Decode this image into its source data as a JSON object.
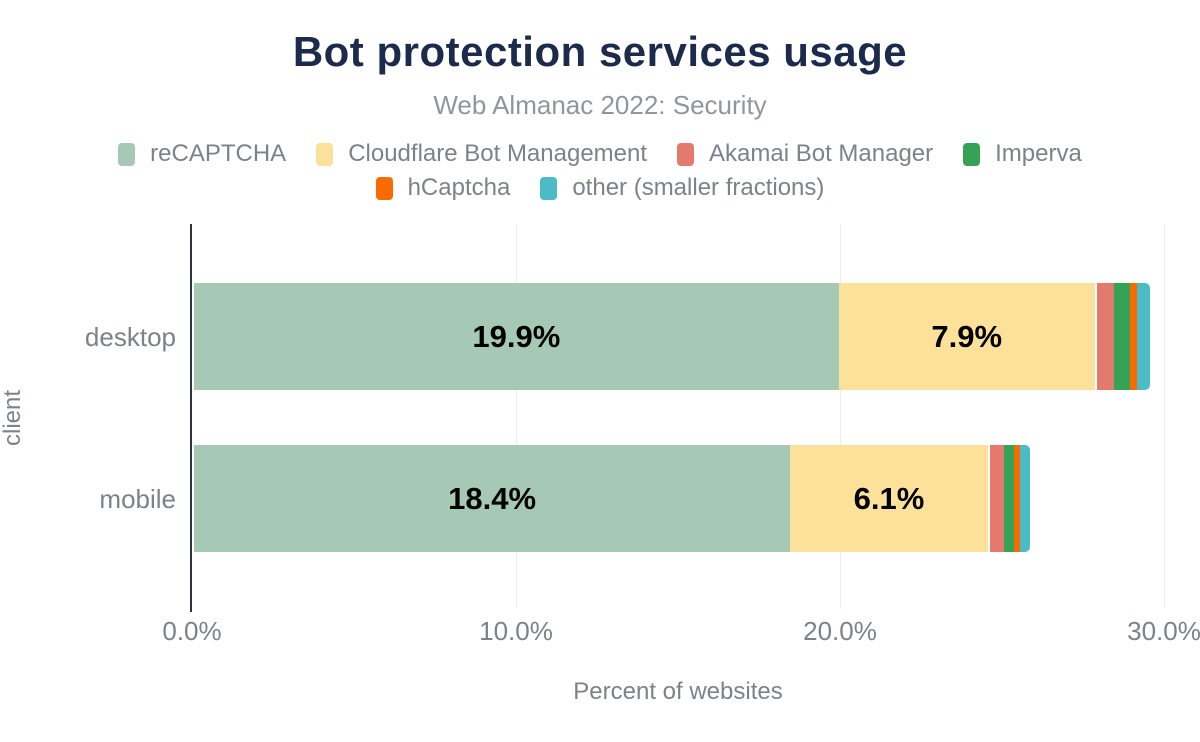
{
  "chart_data": {
    "type": "bar",
    "orientation": "horizontal-stacked",
    "title": "Bot protection services usage",
    "subtitle": "Web Almanac 2022: Security",
    "xlabel": "Percent of websites",
    "ylabel": "client",
    "categories": [
      "desktop",
      "mobile"
    ],
    "series": [
      {
        "name": "reCAPTCHA",
        "color": "#a6c9b5",
        "values": [
          19.9,
          18.4
        ],
        "labels": [
          "19.9%",
          "18.4%"
        ]
      },
      {
        "name": "Cloudflare Bot Management",
        "color": "#fce19b",
        "values": [
          7.9,
          6.1
        ],
        "labels": [
          "7.9%",
          "6.1%"
        ]
      },
      {
        "name": "Akamai Bot Manager",
        "color": "#e27b6e",
        "values": [
          0.6,
          0.5
        ],
        "labels": [
          "",
          ""
        ]
      },
      {
        "name": "Imperva",
        "color": "#34a356",
        "values": [
          0.5,
          0.3
        ],
        "labels": [
          "",
          ""
        ]
      },
      {
        "name": "hCaptcha",
        "color": "#f96b00",
        "values": [
          0.2,
          0.2
        ],
        "labels": [
          "",
          ""
        ]
      },
      {
        "name": "other (smaller fractions)",
        "color": "#4bbcc6",
        "values": [
          0.4,
          0.3
        ],
        "labels": [
          "",
          ""
        ]
      }
    ],
    "xlim": [
      0,
      30
    ],
    "xticks": [
      "0.0%",
      "10.0%",
      "20.0%",
      "30.0%"
    ],
    "grid": "vertical",
    "legend_position": "top",
    "legend_rows": [
      [
        0,
        1,
        2,
        3
      ],
      [
        4,
        5
      ]
    ],
    "colors": {
      "title": "#1c2b4b",
      "subtitle": "#8f969c",
      "axis_text": "#7b838a",
      "axis_line": "#2f3439",
      "grid_line": "#ededed",
      "value_label": "#000000",
      "background": "#ffffff"
    }
  }
}
